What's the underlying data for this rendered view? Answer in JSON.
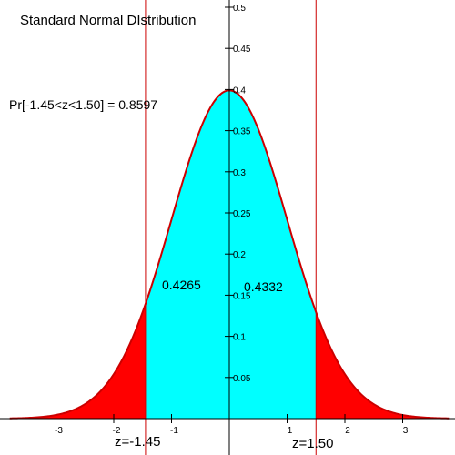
{
  "chart_data": {
    "type": "area",
    "title": "Standard Normal DIstribution",
    "probability_label": "Pr[-1.45<z<1.50] = 0.8597",
    "distribution": {
      "mean": 0,
      "sd": 1
    },
    "xlim": [
      -3.8,
      3.8
    ],
    "ylim": [
      0,
      0.5
    ],
    "x_ticks": [
      -3,
      -2,
      -1,
      1,
      2,
      3
    ],
    "x_tick_labels": [
      "-3",
      "-2",
      "-1",
      "1",
      "2",
      "3"
    ],
    "y_ticks": [
      0.05,
      0.1,
      0.15,
      0.2,
      0.25,
      0.3,
      0.35,
      0.4,
      0.45,
      0.5
    ],
    "y_tick_labels": [
      "0.05",
      "0.1",
      "0.15",
      "0.2",
      "0.25",
      "0.3",
      "0.35",
      "0.4",
      "0.45",
      "0.5"
    ],
    "bounds": [
      {
        "name": "lower",
        "z": -1.45,
        "label": "z=-1.45"
      },
      {
        "name": "upper",
        "z": 1.5,
        "label": "z=1.50"
      }
    ],
    "regions": [
      {
        "name": "left-tail",
        "from": -3.8,
        "to": -1.45,
        "color": "#ff0000",
        "label": ""
      },
      {
        "name": "left-center",
        "from": -1.45,
        "to": 0,
        "color": "#00ffff",
        "label": "0.4265"
      },
      {
        "name": "right-center",
        "from": 0,
        "to": 1.5,
        "color": "#00ffff",
        "label": "0.4332"
      },
      {
        "name": "right-tail",
        "from": 1.5,
        "to": 3.8,
        "color": "#ff0000",
        "label": ""
      }
    ],
    "curve_color": "#cc0000",
    "bound_line_color": "#cc0000",
    "axis_color": "#000000",
    "grid": false
  }
}
